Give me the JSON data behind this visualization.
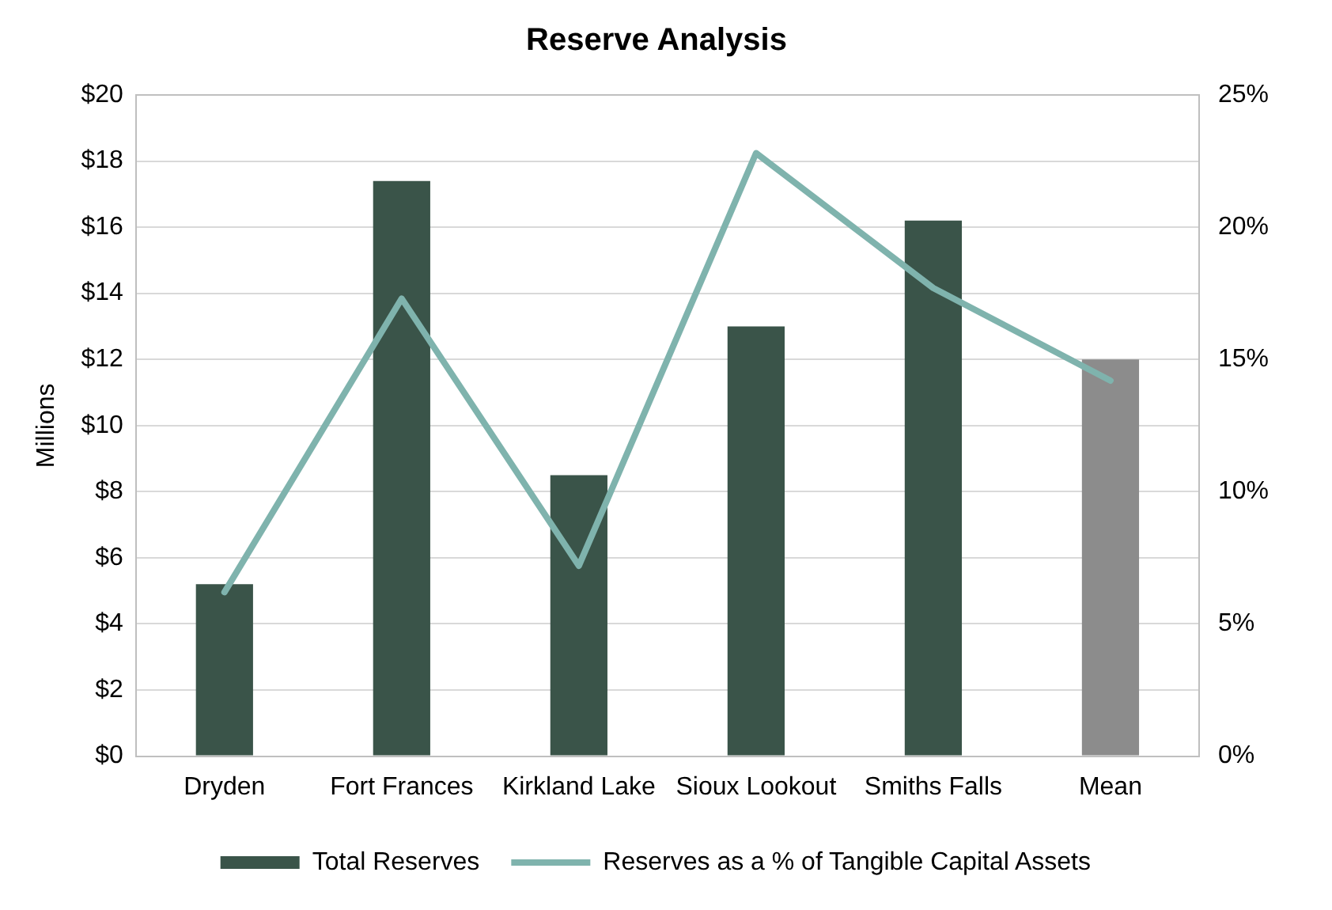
{
  "chart_data": {
    "type": "bar",
    "title": "Reserve Analysis",
    "ylabel": "Millions",
    "categories": [
      "Dryden",
      "Fort Frances",
      "Kirkland Lake",
      "Sioux Lookout",
      "Smiths Falls",
      "Mean"
    ],
    "series": [
      {
        "name": "Total Reserves",
        "color": "#3a5449",
        "colors": [
          "#3a5449",
          "#3a5449",
          "#3a5449",
          "#3a5449",
          "#3a5449",
          "#8c8c8c"
        ],
        "values": [
          5.2,
          17.4,
          8.5,
          13.0,
          16.2,
          12.0
        ]
      },
      {
        "name": "Reserves as a % of Tangible Capital Assets",
        "type": "line",
        "axis": "y2",
        "color": "#7fb3ad",
        "values": [
          6.2,
          17.3,
          7.2,
          22.8,
          17.7,
          14.2
        ]
      }
    ],
    "ylim": [
      0,
      20
    ],
    "yticks": [
      {
        "value": 0,
        "label": "$0"
      },
      {
        "value": 2,
        "label": "$2"
      },
      {
        "value": 4,
        "label": "$4"
      },
      {
        "value": 6,
        "label": "$6"
      },
      {
        "value": 8,
        "label": "$8"
      },
      {
        "value": 10,
        "label": "$10"
      },
      {
        "value": 12,
        "label": "$12"
      },
      {
        "value": 14,
        "label": "$14"
      },
      {
        "value": 16,
        "label": "$16"
      },
      {
        "value": 18,
        "label": "$18"
      },
      {
        "value": 20,
        "label": "$20"
      }
    ],
    "y2lim": [
      0,
      25
    ],
    "y2ticks": [
      {
        "value": 0,
        "label": "0%"
      },
      {
        "value": 5,
        "label": "5%"
      },
      {
        "value": 10,
        "label": "10%"
      },
      {
        "value": 15,
        "label": "15%"
      },
      {
        "value": 20,
        "label": "20%"
      },
      {
        "value": 25,
        "label": "25%"
      }
    ],
    "grid": "y",
    "legend": "bottom",
    "marker": "none",
    "line_style": "solid"
  }
}
